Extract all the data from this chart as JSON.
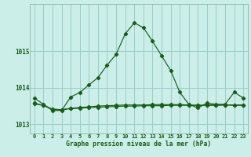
{
  "title": "Graphe pression niveau de la mer (hPa)",
  "background_color": "#cceee8",
  "grid_color": "#99cccc",
  "line_color": "#1a5c1a",
  "spine_color": "#7aaa99",
  "xlim": [
    -0.5,
    23.5
  ],
  "ylim": [
    1012.75,
    1016.3
  ],
  "yticks": [
    1013,
    1014,
    1015
  ],
  "xticks": [
    0,
    1,
    2,
    3,
    4,
    5,
    6,
    7,
    8,
    9,
    10,
    11,
    12,
    13,
    14,
    15,
    16,
    17,
    18,
    19,
    20,
    21,
    22,
    23
  ],
  "hours": [
    0,
    1,
    2,
    3,
    4,
    5,
    6,
    7,
    8,
    9,
    10,
    11,
    12,
    13,
    14,
    15,
    16,
    17,
    18,
    19,
    20,
    21,
    22,
    23
  ],
  "line1": [
    1013.72,
    1013.55,
    1013.38,
    1013.38,
    1013.75,
    1013.87,
    1014.08,
    1014.28,
    1014.62,
    1014.92,
    1015.48,
    1015.78,
    1015.65,
    1015.28,
    1014.88,
    1014.48,
    1013.88,
    1013.55,
    1013.45,
    1013.58,
    1013.55,
    1013.55,
    1013.88,
    1013.72
  ],
  "line2": [
    1013.58,
    1013.52,
    1013.42,
    1013.4,
    1013.44,
    1013.46,
    1013.48,
    1013.5,
    1013.51,
    1013.52,
    1013.53,
    1013.53,
    1013.53,
    1013.54,
    1013.54,
    1013.54,
    1013.54,
    1013.53,
    1013.52,
    1013.53,
    1013.53,
    1013.53,
    1013.52,
    1013.52
  ],
  "line3": [
    1013.56,
    1013.52,
    1013.4,
    1013.4,
    1013.43,
    1013.44,
    1013.46,
    1013.47,
    1013.48,
    1013.49,
    1013.5,
    1013.5,
    1013.51,
    1013.51,
    1013.51,
    1013.52,
    1013.52,
    1013.52,
    1013.52,
    1013.52,
    1013.52,
    1013.53,
    1013.53,
    1013.53
  ]
}
